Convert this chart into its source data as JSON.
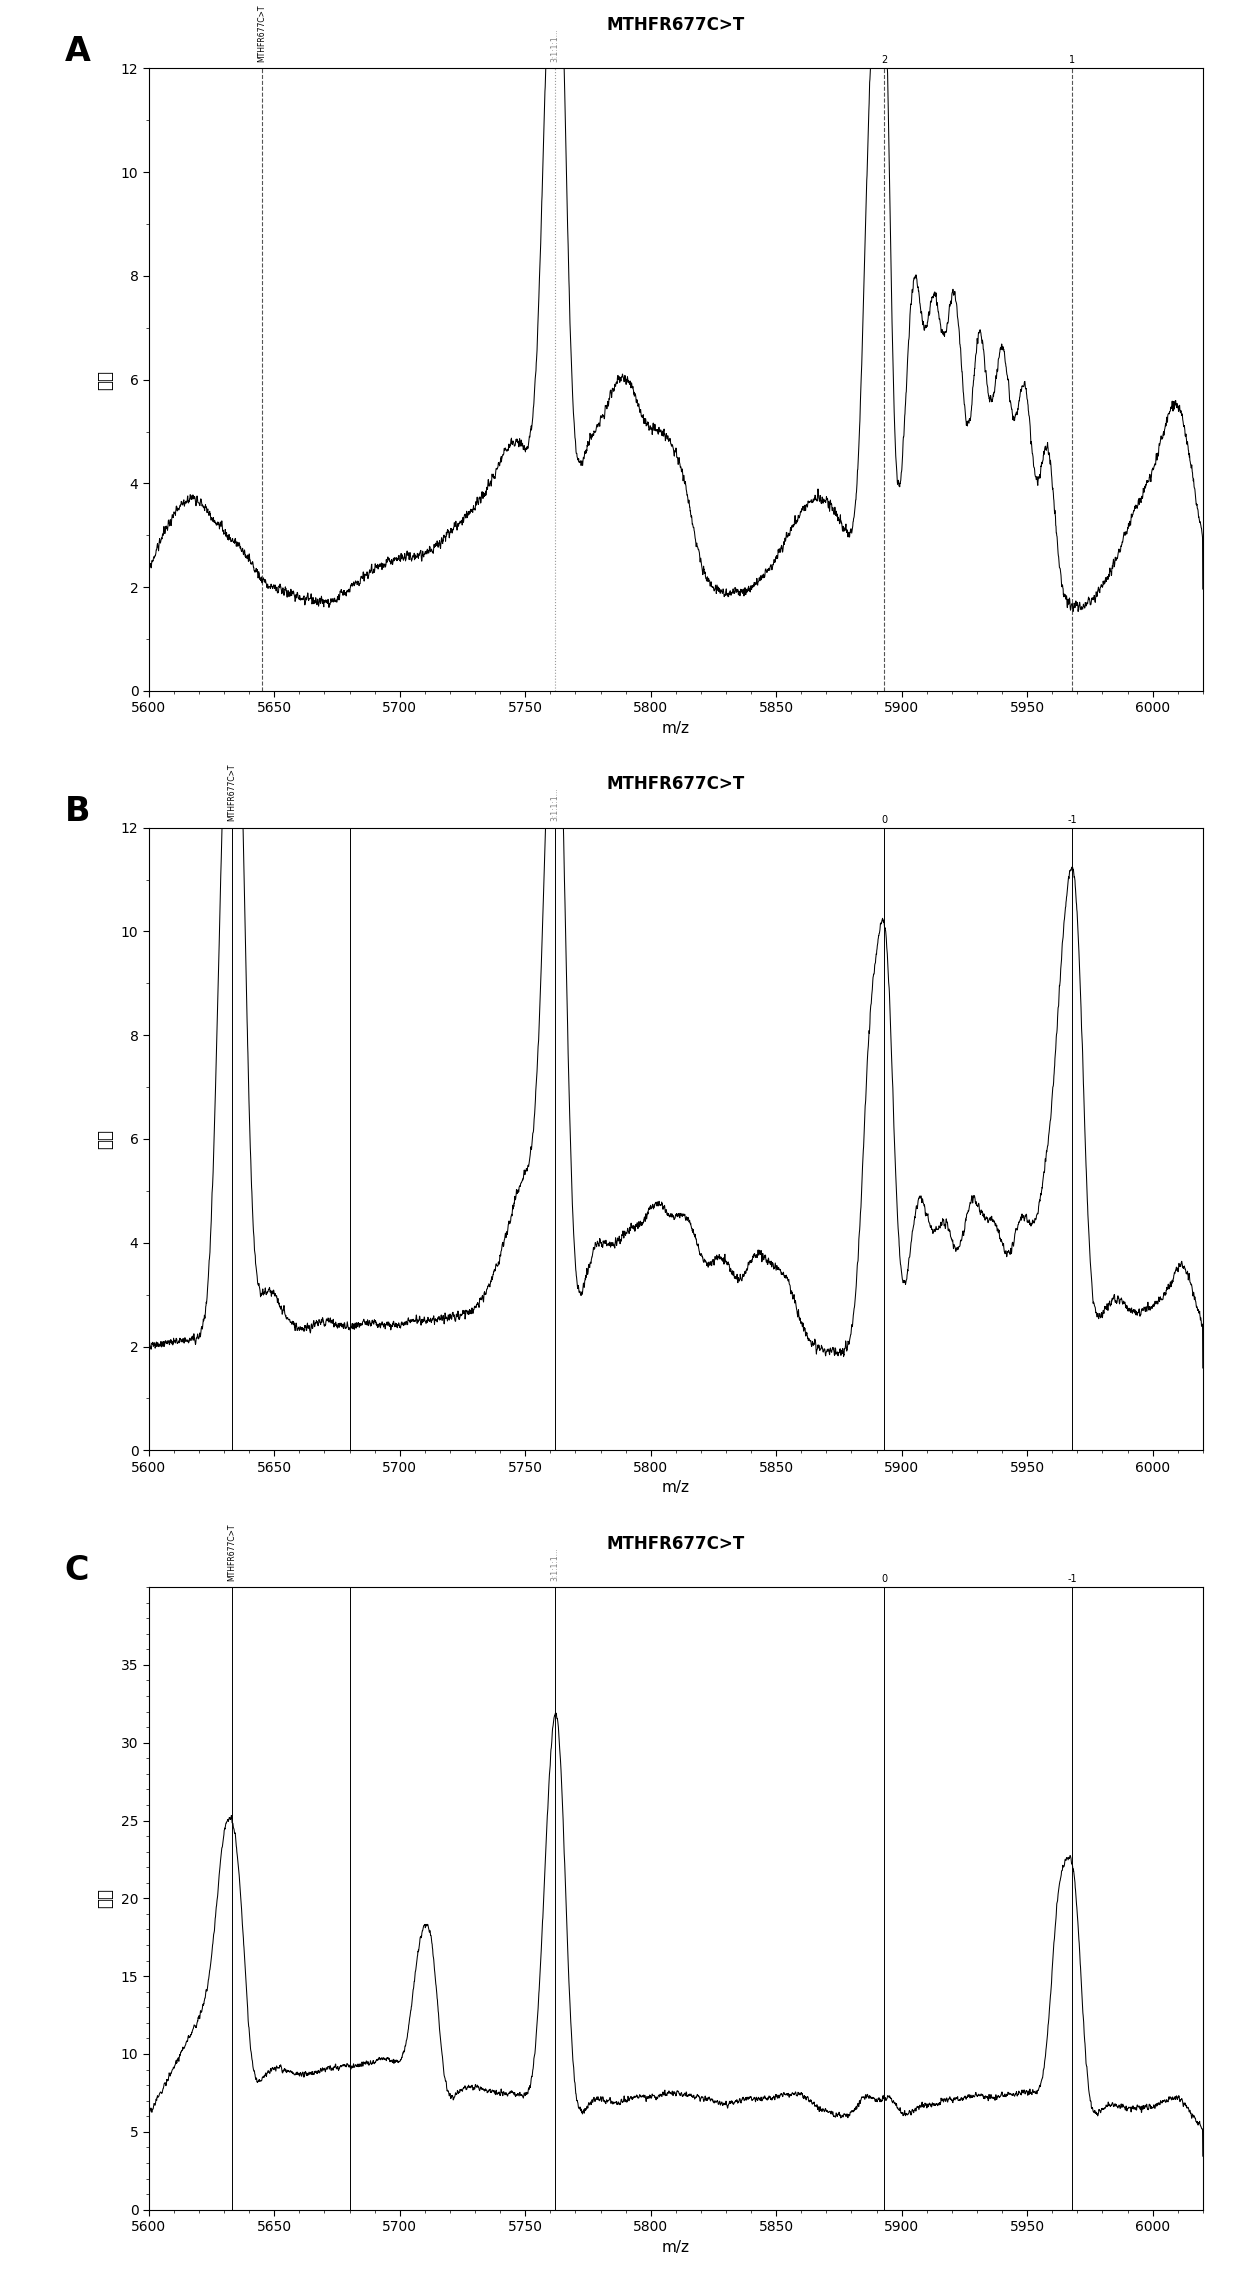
{
  "title": "MTHFR677C>T",
  "xlabel": "m/z",
  "ylabel": "强度",
  "xlim": [
    5600,
    6020
  ],
  "ylim_A": [
    0,
    12
  ],
  "ylim_B": [
    0,
    12
  ],
  "ylim_C": [
    0,
    40
  ],
  "yticks_A": [
    0,
    2,
    4,
    6,
    8,
    10,
    12
  ],
  "yticks_B": [
    0,
    2,
    4,
    6,
    8,
    10,
    12
  ],
  "yticks_C": [
    0,
    5,
    10,
    15,
    20,
    25,
    30,
    35
  ],
  "xticks": [
    5600,
    5650,
    5700,
    5750,
    5800,
    5850,
    5900,
    5950,
    6000
  ],
  "dashed_vlines_A": [
    5645,
    5762,
    5893,
    5968
  ],
  "solid_vlines_BC": [
    5633,
    5680,
    5762,
    5893,
    5968
  ],
  "bg_color": "#ffffff",
  "line_color": "#000000",
  "dashed_color": "#666666",
  "label_A_line1": "MTHFR677C>T",
  "label_A_line2": "3:1:1:1...",
  "label_A_n2": "2",
  "label_A_n1": "1",
  "label_BC_line1": "MTHFR677C>T",
  "label_BC_line2": "3:1:1:1...",
  "label_BC_n0": "0",
  "label_BC_nm1": "-1"
}
